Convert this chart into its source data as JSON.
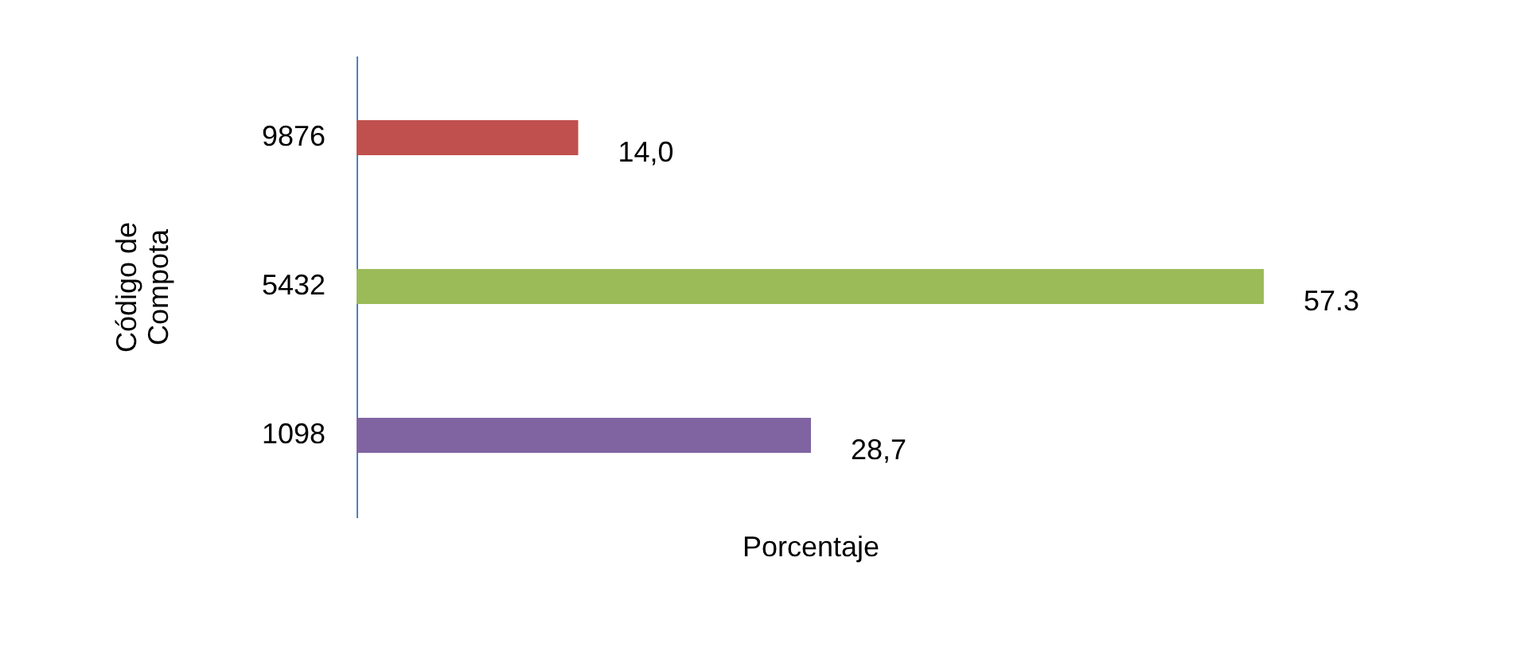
{
  "chart_data": {
    "type": "bar",
    "orientation": "horizontal",
    "tick_labels": "y",
    "xlabel": "Porcentaje",
    "ylabel": "Código de Compota",
    "categories": [
      "9876",
      "5432",
      "1098"
    ],
    "values": [
      14.0,
      57.3,
      28.7
    ],
    "colors": [
      "#c0504d",
      "#9bbb59",
      "#8064a2"
    ],
    "value_labels": [
      "14,0",
      "57.3",
      "28,7"
    ]
  }
}
